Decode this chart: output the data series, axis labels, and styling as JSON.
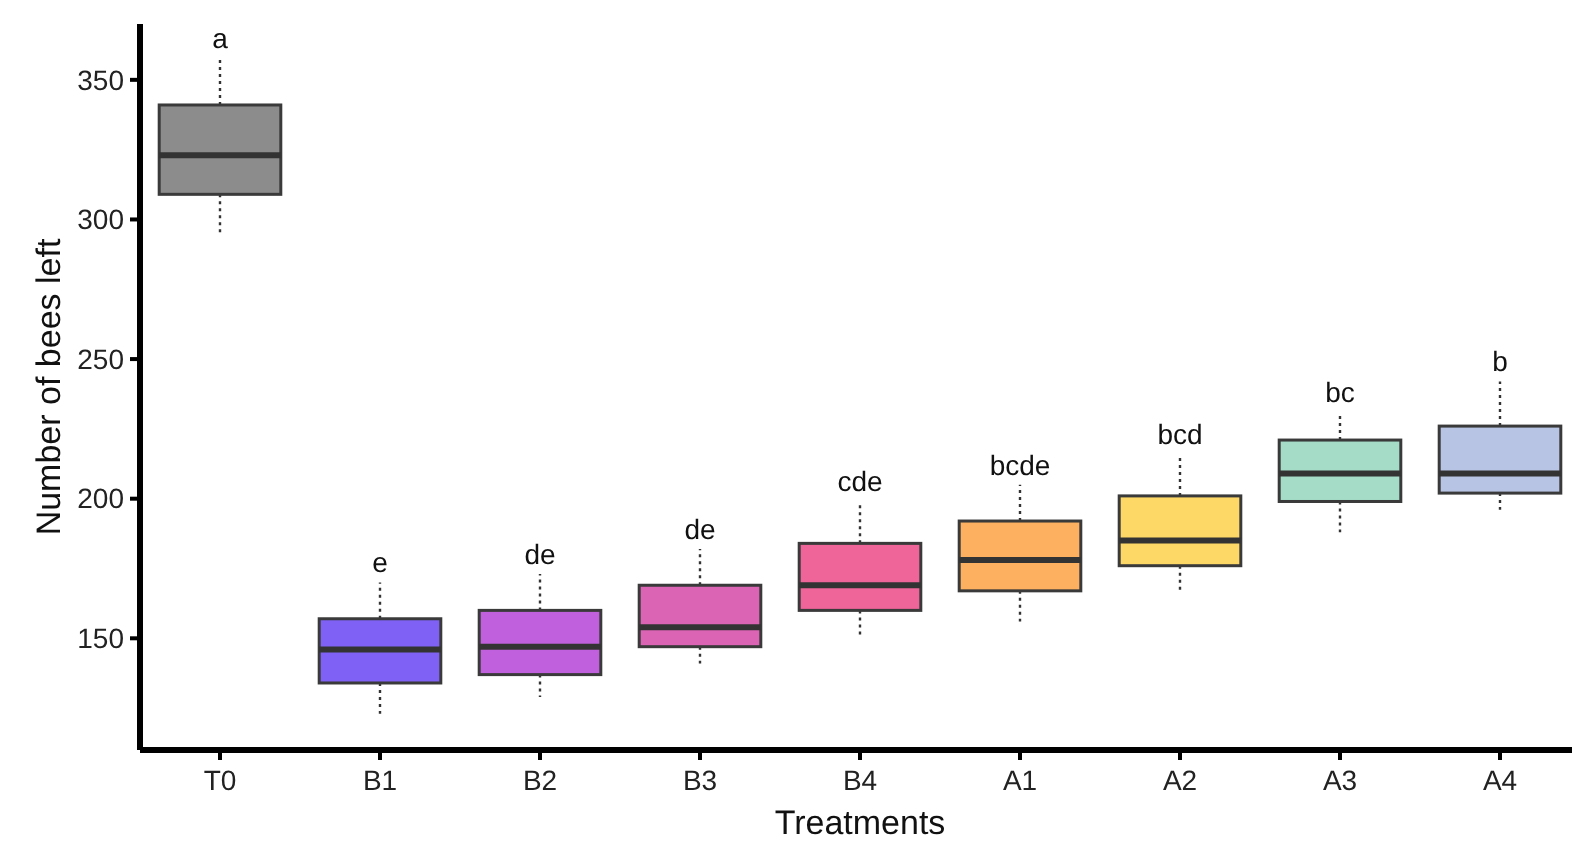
{
  "chart_data": {
    "type": "box",
    "xlabel": "Treatments",
    "ylabel": "Number of bees left",
    "categories": [
      "T0",
      "B1",
      "B2",
      "B3",
      "B4",
      "A1",
      "A2",
      "A3",
      "A4"
    ],
    "colors": [
      "#8c8c8c",
      "#7f62f5",
      "#c160dc",
      "#dc64b4",
      "#ef6499",
      "#fdb060",
      "#fdd867",
      "#a4dcc8",
      "#b8c4e4"
    ],
    "boxes": [
      {
        "low": 295,
        "q1": 309,
        "median": 323,
        "q3": 341,
        "high": 358
      },
      {
        "low": 123,
        "q1": 134,
        "median": 146,
        "q3": 157,
        "high": 170
      },
      {
        "low": 129,
        "q1": 137,
        "median": 147,
        "q3": 160,
        "high": 173
      },
      {
        "low": 141,
        "q1": 147,
        "median": 154,
        "q3": 169,
        "high": 182
      },
      {
        "low": 151,
        "q1": 160,
        "median": 169,
        "q3": 184,
        "high": 199
      },
      {
        "low": 156,
        "q1": 167,
        "median": 178,
        "q3": 192,
        "high": 205
      },
      {
        "low": 167,
        "q1": 176,
        "median": 185,
        "q3": 201,
        "high": 216
      },
      {
        "low": 188,
        "q1": 199,
        "median": 209,
        "q3": 221,
        "high": 231
      },
      {
        "low": 196,
        "q1": 202,
        "median": 209,
        "q3": 226,
        "high": 242
      }
    ],
    "ylim": [
      110,
      370
    ],
    "yticks": [
      150,
      200,
      250,
      300,
      350
    ],
    "grid": false,
    "annotations": [
      {
        "text": "a",
        "x": "T0",
        "y": 358
      },
      {
        "text": "e",
        "x": "B1",
        "y": 170
      },
      {
        "text": "de",
        "x": "B2",
        "y": 173
      },
      {
        "text": "de",
        "x": "B3",
        "y": 182
      },
      {
        "text": "cde",
        "x": "B4",
        "y": 199
      },
      {
        "text": "bcde",
        "x": "A1",
        "y": 205
      },
      {
        "text": "bcd",
        "x": "A2",
        "y": 216
      },
      {
        "text": "bc",
        "x": "A3",
        "y": 231
      },
      {
        "text": "b",
        "x": "A4",
        "y": 242
      }
    ]
  }
}
